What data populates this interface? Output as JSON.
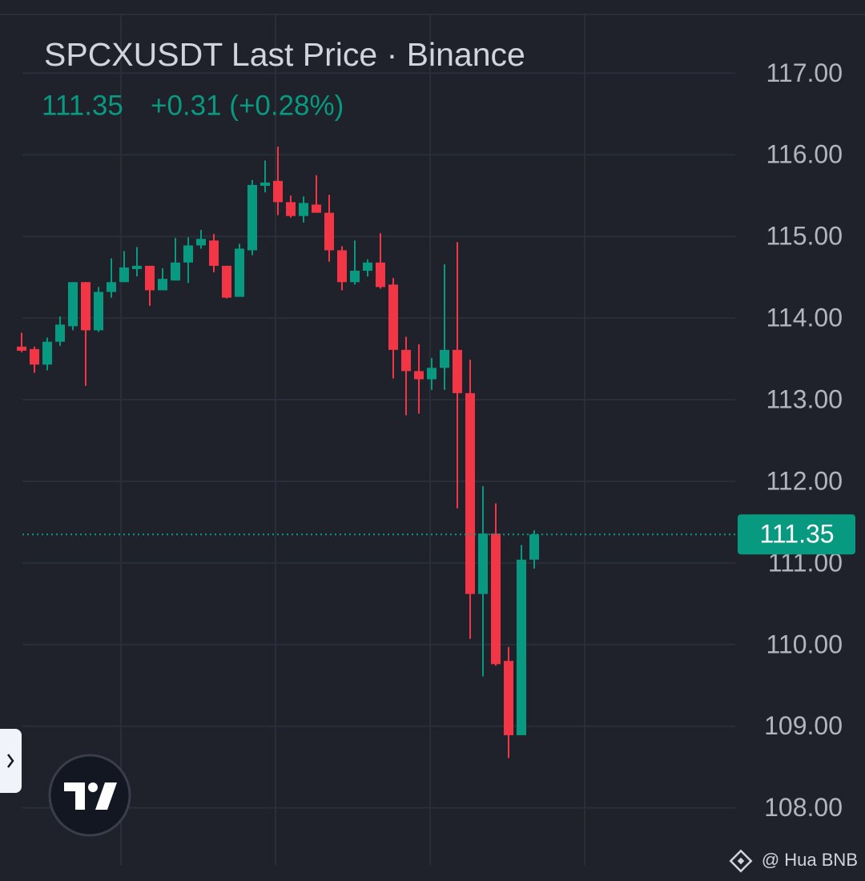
{
  "chart_data": {
    "type": "candlestick",
    "title": "SPCXUSDT Last Price · Binance",
    "change": "+0.31 (+0.28%)",
    "last_price": {
      "value": 111.35,
      "label": "111.35"
    },
    "watermark": "@ Hua BNB",
    "up_color": "#089981",
    "down_color": "#f23645",
    "grid": true,
    "ylim": [
      107.3,
      117.7
    ],
    "yticks": [
      {
        "value": 108,
        "label": "108.00"
      },
      {
        "value": 109,
        "label": "109.00"
      },
      {
        "value": 110,
        "label": "110.00"
      },
      {
        "value": 111,
        "label": "111.00"
      },
      {
        "value": 112,
        "label": "112.00"
      },
      {
        "value": 113,
        "label": "113.00"
      },
      {
        "value": 114,
        "label": "114.00"
      },
      {
        "value": 115,
        "label": "115.00"
      },
      {
        "value": 116,
        "label": "116.00"
      },
      {
        "value": 117,
        "label": "117.00"
      }
    ],
    "open": [
      113.65,
      113.62,
      113.43,
      113.71,
      113.9,
      114.44,
      113.85,
      114.32,
      114.44,
      114.6,
      114.64,
      114.34,
      114.46,
      114.68,
      114.89,
      114.95,
      114.64,
      114.26,
      114.83,
      115.62,
      115.68,
      115.42,
      115.25,
      115.39,
      115.29,
      114.83,
      114.44,
      114.58,
      114.68,
      114.41,
      113.61,
      113.35,
      113.25,
      113.39,
      113.61,
      113.08,
      110.62,
      111.36,
      109.8,
      108.89,
      111.04
    ],
    "high": [
      113.82,
      113.65,
      113.76,
      114.02,
      114.44,
      114.44,
      114.38,
      114.73,
      114.82,
      114.87,
      114.64,
      114.61,
      114.98,
      114.99,
      115.08,
      115.03,
      114.64,
      114.91,
      115.69,
      115.93,
      116.1,
      115.5,
      115.49,
      115.75,
      115.51,
      114.88,
      114.95,
      114.72,
      115.04,
      114.49,
      113.77,
      113.68,
      113.51,
      114.66,
      114.93,
      113.49,
      111.94,
      111.73,
      109.97,
      111.22,
      111.4
    ],
    "low": [
      113.58,
      113.33,
      113.36,
      113.66,
      113.85,
      113.17,
      113.83,
      114.25,
      114.44,
      114.51,
      114.15,
      114.34,
      114.46,
      114.43,
      114.85,
      114.56,
      114.24,
      114.26,
      114.77,
      115.54,
      115.26,
      115.23,
      115.17,
      115.29,
      114.69,
      114.34,
      114.41,
      114.51,
      114.36,
      113.26,
      112.81,
      112.83,
      113.12,
      113.12,
      111.67,
      110.07,
      109.61,
      109.74,
      108.61,
      108.89,
      110.93
    ],
    "close": [
      113.6,
      113.43,
      113.71,
      113.92,
      114.44,
      113.85,
      114.32,
      114.44,
      114.62,
      114.64,
      114.34,
      114.48,
      114.68,
      114.89,
      114.97,
      114.64,
      114.25,
      114.85,
      115.63,
      115.66,
      115.42,
      115.25,
      115.41,
      115.29,
      114.83,
      114.44,
      114.58,
      114.68,
      114.38,
      113.61,
      113.35,
      113.25,
      113.39,
      113.61,
      113.08,
      110.62,
      111.36,
      109.76,
      108.89,
      111.04,
      111.35
    ]
  }
}
